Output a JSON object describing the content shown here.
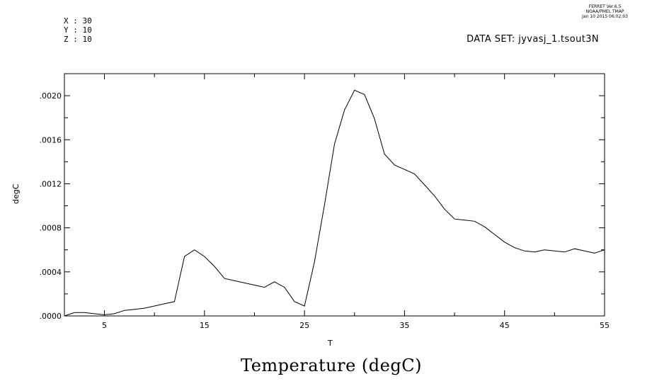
{
  "header": {
    "coords": [
      "X : 30",
      "Y : 10",
      "Z : 10"
    ],
    "ferret": [
      "FERRET  Ver.6.5",
      "NOAA/PMEL TMAP",
      "Jan 10 2015 06:02:03"
    ],
    "dataset": "DATA SET: jyvasj_1.tsout3N"
  },
  "chart_data": {
    "type": "line",
    "title": "Temperature (degC)",
    "xlabel": "T",
    "ylabel": "degC",
    "xlim": [
      1,
      55
    ],
    "ylim": [
      0,
      0.0022
    ],
    "x_ticks": [
      5,
      15,
      25,
      35,
      45,
      55
    ],
    "x_tick_labels": [
      "5",
      "15",
      "25",
      "35",
      "45",
      "55"
    ],
    "y_ticks": [
      0,
      0.0004,
      0.0008,
      0.0012,
      0.0016,
      0.002
    ],
    "y_tick_labels": [
      ".0000",
      ".0004",
      ".0008",
      ".0012",
      ".0016",
      ".0020"
    ],
    "grid": false,
    "series": [
      {
        "x": [
          1,
          2,
          3,
          4,
          5,
          6,
          7,
          8,
          9,
          10,
          11,
          12,
          13,
          14,
          15,
          16,
          17,
          18,
          19,
          20,
          21,
          22,
          23,
          24,
          25,
          26,
          27,
          28,
          29,
          30,
          31,
          32,
          33,
          34,
          35,
          36,
          37,
          38,
          39,
          40,
          41,
          42,
          43,
          44,
          45,
          46,
          47,
          48,
          49,
          50,
          51,
          52,
          53,
          54,
          55
        ],
        "y": [
          0.0,
          3e-05,
          3e-05,
          2e-05,
          1e-05,
          2e-05,
          5e-05,
          6e-05,
          7e-05,
          9e-05,
          0.00011,
          0.00013,
          0.00054,
          0.0006,
          0.00054,
          0.00045,
          0.00034,
          0.00032,
          0.0003,
          0.00028,
          0.00026,
          0.00031,
          0.00026,
          0.00013,
          9e-05,
          0.00049,
          0.00101,
          0.00156,
          0.00187,
          0.00205,
          0.00201,
          0.00179,
          0.00147,
          0.00137,
          0.00133,
          0.00129,
          0.00119,
          0.00109,
          0.00097,
          0.00088,
          0.00087,
          0.00086,
          0.00081,
          0.00074,
          0.00067,
          0.00062,
          0.00059,
          0.00058,
          0.0006,
          0.00059,
          0.00058,
          0.00061,
          0.00059,
          0.00057,
          0.0006
        ]
      }
    ]
  }
}
